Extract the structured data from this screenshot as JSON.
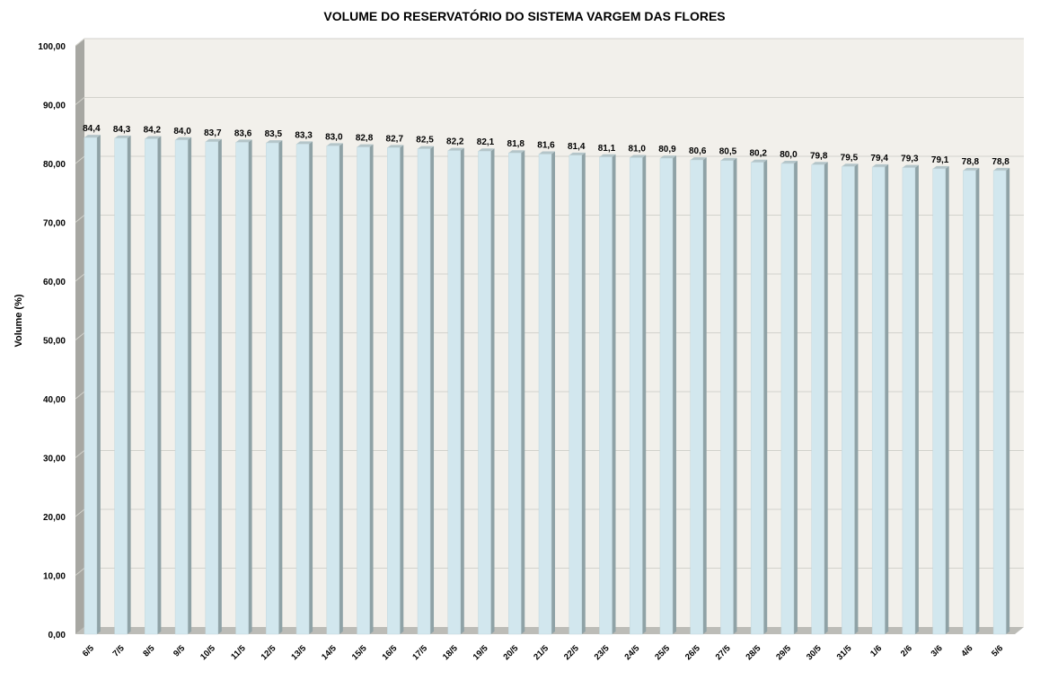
{
  "chart_data": {
    "type": "bar",
    "title": "VOLUME DO RESERVATÓRIO DO SISTEMA VARGEM DAS FLORES",
    "xlabel": "",
    "ylabel": "Volume (%)",
    "ylim": [
      0,
      100
    ],
    "y_ticks": [
      "0,00",
      "10,00",
      "20,00",
      "30,00",
      "40,00",
      "50,00",
      "60,00",
      "70,00",
      "80,00",
      "90,00",
      "100,00"
    ],
    "grid": true,
    "categories": [
      "6/5",
      "7/5",
      "8/5",
      "9/5",
      "10/5",
      "11/5",
      "12/5",
      "13/5",
      "14/5",
      "15/5",
      "16/5",
      "17/5",
      "18/5",
      "19/5",
      "20/5",
      "21/5",
      "22/5",
      "23/5",
      "24/5",
      "25/5",
      "26/5",
      "27/5",
      "28/5",
      "29/5",
      "30/5",
      "31/5",
      "1/6",
      "2/6",
      "3/6",
      "4/6",
      "5/6"
    ],
    "values": [
      84.4,
      84.3,
      84.2,
      84.0,
      83.7,
      83.6,
      83.5,
      83.3,
      83.0,
      82.8,
      82.7,
      82.5,
      82.2,
      82.1,
      81.8,
      81.6,
      81.4,
      81.1,
      81.0,
      80.9,
      80.6,
      80.5,
      80.2,
      80.0,
      79.8,
      79.5,
      79.4,
      79.3,
      79.1,
      78.8,
      78.8
    ],
    "data_labels": [
      "84,4",
      "84,3",
      "84,2",
      "84,0",
      "83,7",
      "83,6",
      "83,5",
      "83,3",
      "83,0",
      "82,8",
      "82,7",
      "82,5",
      "82,2",
      "82,1",
      "81,8",
      "81,6",
      "81,4",
      "81,1",
      "81,0",
      "80,9",
      "80,6",
      "80,5",
      "80,2",
      "80,0",
      "79,8",
      "79,5",
      "79,4",
      "79,3",
      "79,1",
      "78,8",
      "78,8"
    ],
    "colors": {
      "bar_front": "#d2e7ee",
      "bar_side": "#8fa2a6",
      "bar_top": "#b4c5c9",
      "plot_background": "#f2f0eb",
      "wall_side": "#a7a7a2",
      "floor": "#bcbcb7",
      "gridline": "#d2d2cc"
    }
  }
}
